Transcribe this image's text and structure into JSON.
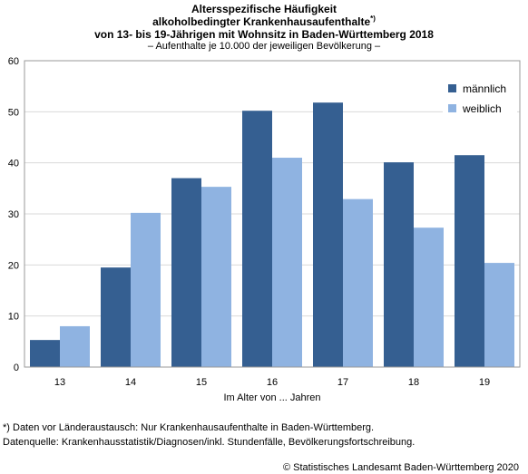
{
  "chart_data": {
    "type": "bar",
    "title_lines": [
      "Altersspezifische Häufigkeit",
      "alkoholbedingter Krankenhausaufenthalte",
      "von 13- bis 19-Jährigen mit Wohnsitz in Baden-Württemberg 2018"
    ],
    "title_mark": "*)",
    "subtitle": "– Aufenthalte je 10.000 der jeweiligen Bevölkerung –",
    "categories": [
      "13",
      "14",
      "15",
      "16",
      "17",
      "18",
      "19"
    ],
    "series": [
      {
        "name": "männlich",
        "values": [
          5.3,
          19.5,
          37.0,
          50.2,
          51.8,
          40.1,
          41.5
        ]
      },
      {
        "name": "weiblich",
        "values": [
          8.0,
          30.2,
          35.3,
          41.0,
          32.9,
          27.3,
          20.4
        ]
      }
    ],
    "xlabel": "Im Alter von ... Jahren",
    "ylabel": "",
    "ylim": [
      0,
      60
    ],
    "yticks": [
      0,
      10,
      20,
      30,
      40,
      50,
      60
    ],
    "grid": true,
    "legend_position": "top-right",
    "colors": {
      "männlich": "#355f91",
      "weiblich": "#8fb3e1"
    }
  },
  "footnote": "*) Daten vor Länderaustausch: Nur Krankenhausaufenthalte in Baden-Württemberg.",
  "source": "Datenquelle: Krankenhausstatistik/Diagnosen/inkl. Stundenfälle, Bevölkerungsfortschreibung.",
  "copyright": "© Statistisches Landesamt Baden-Württemberg 2020"
}
